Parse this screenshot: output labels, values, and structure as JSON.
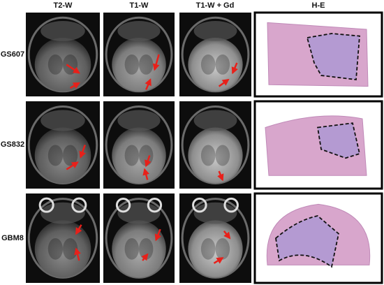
{
  "header": {
    "columns": [
      "T2-W",
      "T1-W",
      "T1-W + Gd",
      "H-E"
    ]
  },
  "rows": [
    {
      "label": "GS607"
    },
    {
      "label": "GS832"
    },
    {
      "label": "GBM8"
    }
  ]
}
